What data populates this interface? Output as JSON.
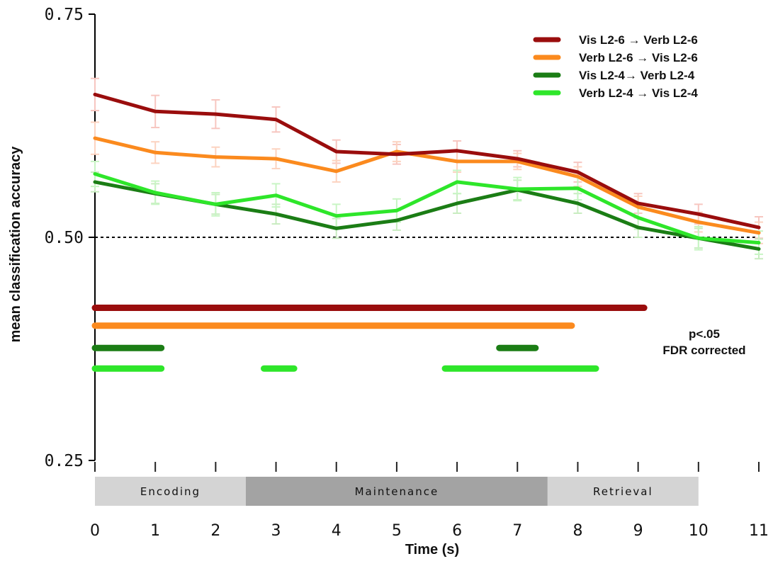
{
  "chart_data": {
    "type": "line",
    "xlabel": "Time (s)",
    "ylabel": "mean classification accuracy",
    "xlim": [
      0,
      11
    ],
    "ylim": [
      0.25,
      0.75
    ],
    "x": [
      0,
      1,
      2,
      3,
      4,
      5,
      6,
      7,
      8,
      9,
      10,
      11
    ],
    "xtick_labels": [
      "0",
      "1",
      "2",
      "3",
      "4",
      "5",
      "6",
      "7",
      "8",
      "9",
      "10",
      "11"
    ],
    "ytick_labels": [
      "0.25",
      "0.50",
      "0.75"
    ],
    "yticks": [
      0.25,
      0.5,
      0.75
    ],
    "chance_level": 0.5,
    "series": [
      {
        "name": "Vis L2-6 → Verb L2-6",
        "color": "#9a0d0d",
        "errcolor": "#f7c6c0",
        "values": [
          0.66,
          0.641,
          0.638,
          0.632,
          0.596,
          0.593,
          0.597,
          0.588,
          0.573,
          0.538,
          0.526,
          0.511
        ],
        "errors": [
          0.018,
          0.018,
          0.016,
          0.014,
          0.013,
          0.011,
          0.011,
          0.009,
          0.011,
          0.011,
          0.011,
          0.012
        ]
      },
      {
        "name": "Verb L2-6 → Vis L2-6",
        "color": "#fb8a1e",
        "errcolor": "#fcd3c0",
        "values": [
          0.611,
          0.595,
          0.59,
          0.588,
          0.574,
          0.596,
          0.585,
          0.585,
          0.568,
          0.534,
          0.517,
          0.505
        ],
        "errors": [
          0.018,
          0.012,
          0.011,
          0.011,
          0.012,
          0.011,
          0.012,
          0.009,
          0.011,
          0.012,
          0.011,
          0.012
        ]
      },
      {
        "name": "Vis L2-4→ Verb L2-4",
        "color": "#1b7d15",
        "errcolor": "#c8ecc0",
        "values": [
          0.562,
          0.549,
          0.537,
          0.526,
          0.51,
          0.519,
          0.538,
          0.553,
          0.538,
          0.511,
          0.499,
          0.487
        ],
        "errors": [
          0.011,
          0.011,
          0.011,
          0.011,
          0.011,
          0.011,
          0.011,
          0.011,
          0.011,
          0.011,
          0.011,
          0.011
        ]
      },
      {
        "name": "Verb L2-4 → Vis L2-4",
        "color": "#2ee62a",
        "errcolor": "#c8f5c4",
        "values": [
          0.571,
          0.55,
          0.537,
          0.547,
          0.524,
          0.53,
          0.562,
          0.554,
          0.555,
          0.522,
          0.499,
          0.494
        ],
        "errors": [
          0.014,
          0.013,
          0.013,
          0.013,
          0.013,
          0.013,
          0.013,
          0.013,
          0.013,
          0.013,
          0.013,
          0.013
        ]
      }
    ],
    "significance_bars": [
      {
        "series": 0,
        "y": 0.421,
        "segments": [
          [
            0,
            9.1
          ]
        ]
      },
      {
        "series": 1,
        "y": 0.401,
        "segments": [
          [
            0,
            7.9
          ]
        ]
      },
      {
        "series": 2,
        "y": 0.376,
        "segments": [
          [
            0,
            1.1
          ],
          [
            6.7,
            7.3
          ]
        ]
      },
      {
        "series": 3,
        "y": 0.353,
        "segments": [
          [
            0,
            1.1
          ],
          [
            2.8,
            3.3
          ],
          [
            5.8,
            8.3
          ]
        ]
      }
    ],
    "phases": [
      {
        "label": "Encoding",
        "start": 0,
        "end": 2.5,
        "color": "#d4d4d4"
      },
      {
        "label": "Maintenance",
        "start": 2.5,
        "end": 7.5,
        "color": "#a3a3a3"
      },
      {
        "label": "Retrieval",
        "start": 7.5,
        "end": 10,
        "color": "#d4d4d4"
      }
    ],
    "annotation": {
      "line1": "p<.05",
      "line2": "FDR corrected"
    },
    "legend_position": "top-right",
    "grid": false
  }
}
